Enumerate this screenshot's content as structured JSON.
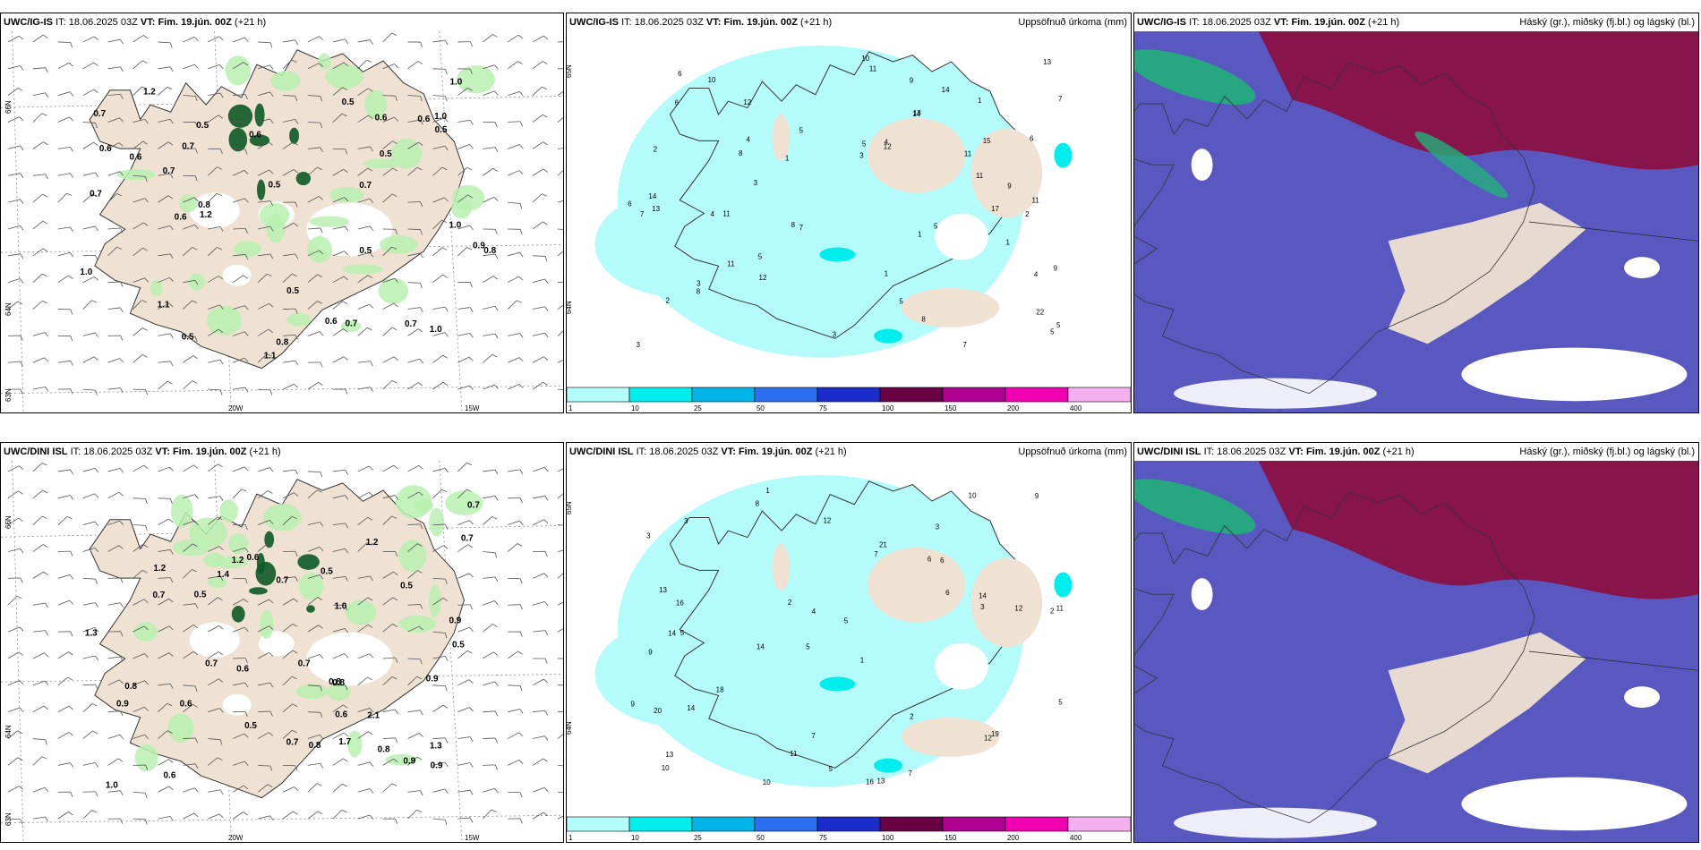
{
  "rows": [
    {
      "model": "UWC/IG-IS",
      "it_label": "IT:",
      "it_value": "18.06.2025 03Z",
      "vt_label": "VT:",
      "vt_value": "Fim. 19.jún. 00Z",
      "lead": "(+21 h)",
      "panels": [
        {
          "kind": "wind",
          "right_title": "",
          "lat_labels": [
            "66N",
            "64N",
            "63N"
          ],
          "lon_labels": [
            "20W",
            "15W"
          ],
          "values": [
            "0.6",
            "0.7",
            "0.7",
            "0.8",
            "0.6",
            "1.1",
            "0.5",
            "1.2",
            "1.0",
            "0.8",
            "0.9",
            "0.5",
            "0.5",
            "1.1",
            "0.7",
            "0.5",
            "0.8",
            "0.6",
            "1.0",
            "0.6",
            "0.7",
            "1.0",
            "0.5",
            "0.5",
            "0.6",
            "0.7",
            "0.5",
            "0.5",
            "1.2",
            "0.6",
            "1.0",
            "0.7",
            "1.0",
            "0.6",
            "0.7"
          ]
        },
        {
          "kind": "precip",
          "right_title": "Uppsöfnuð úrkoma (mm)",
          "lat_labels": [
            "65N",
            "64N"
          ],
          "lon_labels": [],
          "values": [
            "1",
            "1",
            "1",
            "3",
            "2",
            "5",
            "1",
            "4",
            "3",
            "5",
            "10",
            "8",
            "6",
            "11",
            "11",
            "7",
            "3",
            "3",
            "14",
            "4",
            "7",
            "7",
            "12",
            "6",
            "5",
            "8",
            "13",
            "14",
            "12",
            "4",
            "5",
            "11",
            "7",
            "8",
            "9",
            "13",
            "12",
            "8",
            "10",
            "11",
            "6",
            "5",
            "9",
            "17",
            "4",
            "3",
            "14",
            "11",
            "2",
            "2",
            "1",
            "5",
            "22",
            "15",
            "11",
            "13",
            "9",
            "6",
            "5"
          ]
        },
        {
          "kind": "cloud",
          "right_title": "Háský (gr.), miðský (fj.bl.) og lágský (bl.)",
          "lat_labels": [],
          "lon_labels": [],
          "values": []
        }
      ]
    },
    {
      "model": "UWC/DINI ISL",
      "it_label": "IT:",
      "it_value": "18.06.2025 03Z",
      "vt_label": "VT:",
      "vt_value": "Fim. 19.jún. 00Z",
      "lead": "(+21 h)",
      "panels": [
        {
          "kind": "wind",
          "right_title": "",
          "lat_labels": [
            "66N",
            "64N",
            "63N"
          ],
          "lon_labels": [
            "20W",
            "15W"
          ],
          "values": [
            "0.5",
            "0.6",
            "0.6",
            "0.6",
            "1.0",
            "1.2",
            "0.9",
            "0.5",
            "1.3",
            "0.8",
            "1.4",
            "1.3",
            "2.1",
            "1.0",
            "0.7",
            "0.8",
            "0.9",
            "0.8",
            "1.7",
            "1.2",
            "0.8",
            "0.9",
            "0.8",
            "0.7",
            "0.7",
            "0.5",
            "0.5",
            "0.6",
            "0.7",
            "1.2",
            "0.6",
            "0.7",
            "0.5",
            "0.9",
            "0.7",
            "0.9",
            "0.7"
          ]
        },
        {
          "kind": "precip",
          "right_title": "Uppsöfnuð úrkoma (mm)",
          "lat_labels": [
            "65N",
            "64N"
          ],
          "lon_labels": [],
          "values": [
            "1",
            "3",
            "2",
            "5",
            "1",
            "5",
            "3",
            "6",
            "9",
            "7",
            "5",
            "10",
            "8",
            "14",
            "16",
            "13",
            "7",
            "10",
            "6",
            "18",
            "16",
            "14",
            "11",
            "12",
            "9",
            "13",
            "4",
            "3",
            "19",
            "20",
            "12",
            "21",
            "14",
            "2",
            "2",
            "5",
            "14",
            "11",
            "9",
            "12",
            "13",
            "10",
            "7",
            "3",
            "5",
            "6"
          ]
        },
        {
          "kind": "cloud",
          "right_title": "Háský (gr.), miðský (fj.bl.) og lágský (bl.)",
          "lat_labels": [],
          "lon_labels": [],
          "values": []
        }
      ]
    }
  ],
  "colorbar": {
    "ticks": [
      "1",
      "10",
      "25",
      "50",
      "75",
      "100",
      "150",
      "200",
      "400"
    ],
    "colors": [
      "#b4fbfb",
      "#00eded",
      "#00b4e8",
      "#2c6ff0",
      "#1c2cc8",
      "#6a0044",
      "#b00090",
      "#f000b0",
      "#f5b0f0"
    ]
  },
  "map_colors": {
    "land": "#efe2d2",
    "precip_light": "#b4fbfb",
    "precip_mid": "#00eded",
    "precip_green_light": "#b9f0b0",
    "precip_green_dark": "#0c5a26",
    "cloud_low": "#5858c0",
    "cloud_mid": "#8a1246",
    "cloud_high": "#22b07a"
  }
}
